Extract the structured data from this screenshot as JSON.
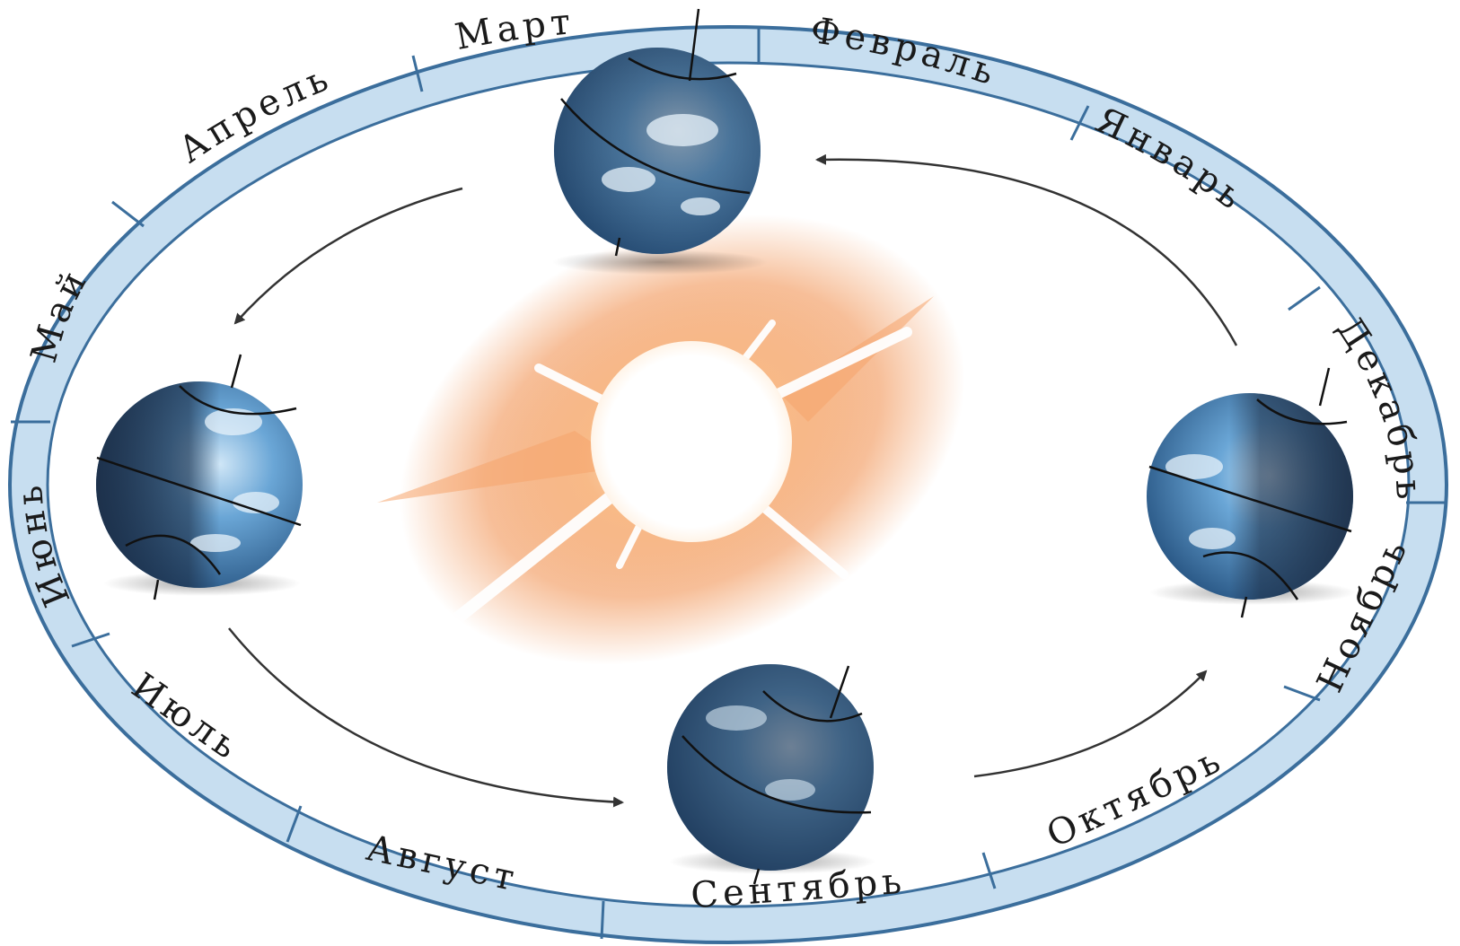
{
  "months": [
    {
      "name": "Январь"
    },
    {
      "name": "Февраль"
    },
    {
      "name": "Март"
    },
    {
      "name": "Апрель"
    },
    {
      "name": "Май"
    },
    {
      "name": "Июнь"
    },
    {
      "name": "Июль"
    },
    {
      "name": "Август"
    },
    {
      "name": "Сентябрь"
    },
    {
      "name": "Октябрь"
    },
    {
      "name": "Ноябрь"
    },
    {
      "name": "Декабрь"
    }
  ],
  "colors": {
    "ring_fill": "#c7def0",
    "ring_stroke": "#3b6e9c",
    "divider": "#3b6e9c",
    "sun_glow": "#f2833a",
    "sun_core": "#ffffff",
    "earth_ocean": "#3f7fb8",
    "earth_night": "#1c2f4a",
    "arrow": "#222222"
  },
  "icons": {
    "sun": "sun-icon",
    "earth": "earth-globe-icon",
    "orbit_arrow": "curved-arrow-icon"
  }
}
